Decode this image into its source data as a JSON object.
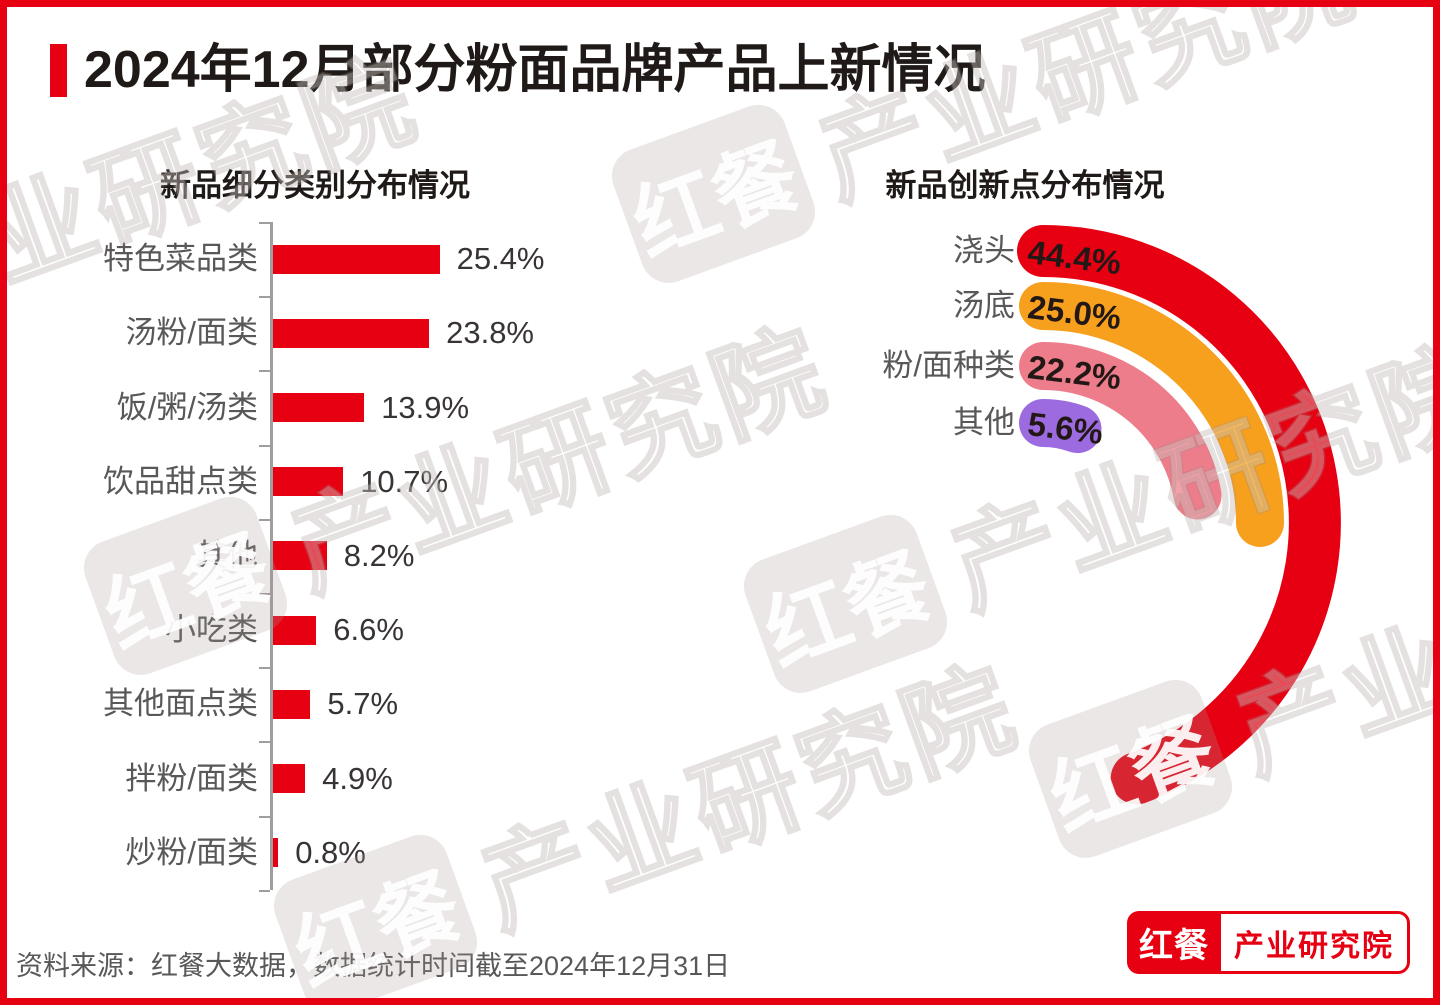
{
  "page": {
    "title": "2024年12月部分粉面品牌产品上新情况",
    "source_note": "资料来源：红餐大数据，数据统计时间截至2024年12月31日",
    "accent_color": "#e60012"
  },
  "watermark": {
    "brand": "红餐",
    "org": "产业研究院"
  },
  "logo": {
    "brand": "红餐",
    "org": "产业研究院"
  },
  "chart_data": [
    {
      "type": "bar",
      "orientation": "horizontal",
      "title": "新品细分类别分布情况",
      "unit": "%",
      "bar_color": "#e60012",
      "categories": [
        "特色菜品类",
        "汤粉/面类",
        "饭/粥/汤类",
        "饮品甜点类",
        "其他",
        "小吃类",
        "其他面点类",
        "拌粉/面类",
        "炒粉/面类"
      ],
      "values": [
        25.4,
        23.8,
        13.9,
        10.7,
        8.2,
        6.6,
        5.7,
        4.9,
        0.8
      ],
      "value_labels": [
        "25.4%",
        "23.8%",
        "13.9%",
        "10.7%",
        "8.2%",
        "6.6%",
        "5.7%",
        "4.9%",
        "0.8%"
      ],
      "xlim": [
        0,
        30
      ],
      "grid": false,
      "legend": "none"
    },
    {
      "type": "radial-bar",
      "title": "新品创新点分布情况",
      "unit": "%",
      "angle_scale": "100%=360deg, start 12 o'clock, clockwise",
      "categories": [
        "浇头",
        "汤底",
        "粉/面种类",
        "其他"
      ],
      "values": [
        44.4,
        25.0,
        22.2,
        5.6
      ],
      "value_labels": [
        "44.4%",
        "25.0%",
        "22.2%",
        "5.6%"
      ],
      "colors": [
        "#e60012",
        "#f7a01e",
        "#ee7d8b",
        "#9c6be0"
      ],
      "legend": "labels-left-of-arc-start"
    }
  ]
}
